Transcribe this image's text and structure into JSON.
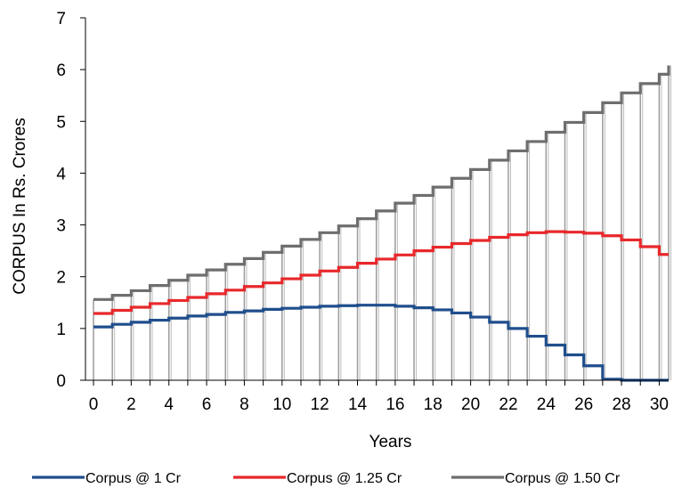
{
  "chart_data": {
    "type": "line",
    "title": "",
    "xlabel": "Years",
    "ylabel": "CORPUS In Rs. Crores",
    "xlim": [
      0,
      30
    ],
    "ylim": [
      0,
      7
    ],
    "x_ticks": [
      "0",
      "2",
      "4",
      "6",
      "8",
      "10",
      "12",
      "14",
      "16",
      "18",
      "20",
      "22",
      "24",
      "26",
      "28",
      "30"
    ],
    "y_ticks": [
      "0",
      "1",
      "2",
      "3",
      "4",
      "5",
      "6",
      "7"
    ],
    "legend_position": "bottom",
    "grid": false,
    "x": [
      0,
      1,
      2,
      3,
      4,
      5,
      6,
      7,
      8,
      9,
      10,
      11,
      12,
      13,
      14,
      15,
      16,
      17,
      18,
      19,
      20,
      21,
      22,
      23,
      24,
      25,
      26,
      27,
      28,
      29,
      30
    ],
    "series": [
      {
        "name": "Corpus @ 1 Cr",
        "color": "#1f4e8c",
        "values": [
          1.03,
          1.08,
          1.12,
          1.16,
          1.2,
          1.24,
          1.27,
          1.31,
          1.34,
          1.37,
          1.39,
          1.41,
          1.43,
          1.44,
          1.45,
          1.45,
          1.43,
          1.4,
          1.36,
          1.3,
          1.22,
          1.12,
          1.0,
          0.85,
          0.68,
          0.49,
          0.28,
          0.02,
          0.0,
          0.0,
          0.0
        ]
      },
      {
        "name": "Corpus @ 1.25 Cr",
        "color": "#e8282b",
        "values": [
          1.29,
          1.35,
          1.41,
          1.48,
          1.54,
          1.6,
          1.67,
          1.74,
          1.81,
          1.88,
          1.96,
          2.03,
          2.11,
          2.18,
          2.26,
          2.34,
          2.42,
          2.5,
          2.57,
          2.64,
          2.7,
          2.76,
          2.81,
          2.85,
          2.87,
          2.86,
          2.84,
          2.79,
          2.71,
          2.58,
          2.43
        ]
      },
      {
        "name": "Corpus @ 1.50 Cr",
        "color": "#6e6e6e",
        "values": [
          1.56,
          1.64,
          1.73,
          1.83,
          1.93,
          2.03,
          2.13,
          2.24,
          2.35,
          2.47,
          2.59,
          2.72,
          2.85,
          2.98,
          3.12,
          3.27,
          3.42,
          3.57,
          3.73,
          3.9,
          4.07,
          4.25,
          4.43,
          4.61,
          4.79,
          4.98,
          5.17,
          5.36,
          5.55,
          5.73,
          5.91
        ]
      }
    ],
    "extra_point": {
      "x": 30.5,
      "values": [
        0.0,
        2.43,
        6.08
      ]
    }
  }
}
